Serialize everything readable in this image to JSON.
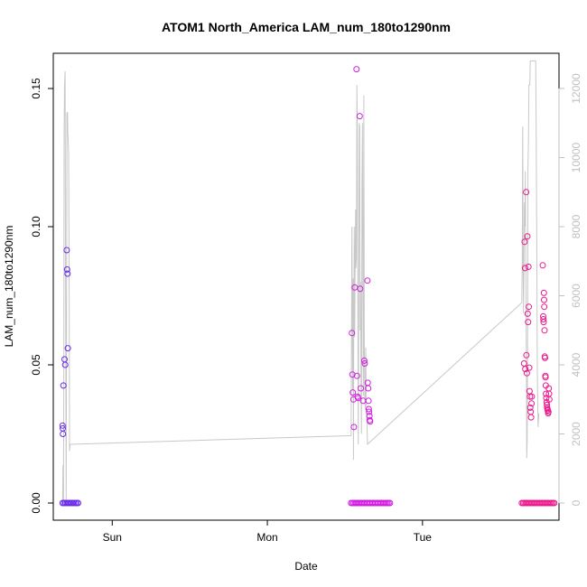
{
  "chart_data": {
    "type": "scatter",
    "title": "ATOM1 North_America LAM_num_180to1290nm",
    "xlabel": "Date",
    "ylabel": "LAM_num_180to1290nm",
    "x_ticks": [
      "Sun",
      "Mon",
      "Tue"
    ],
    "x_tick_days": [
      1,
      2,
      3
    ],
    "xlim": [
      0.62,
      3.88
    ],
    "ylim": [
      0,
      0.16
    ],
    "y_ticks": [
      0.0,
      0.05,
      0.1,
      0.15
    ],
    "y_tick_labels": [
      "0.00",
      "0.05",
      "0.10",
      "0.15"
    ],
    "y2lim": [
      0,
      12800
    ],
    "y2_ticks": [
      0,
      2000,
      4000,
      6000,
      8000,
      10000,
      12000
    ],
    "y2_tick_labels": [
      "0",
      "2000",
      "4000",
      "6000",
      "8000",
      "10000",
      "12000"
    ],
    "grid": false,
    "legend": "none",
    "colors": {
      "line": "#c8c8c8",
      "group1": "#6a2be8",
      "group2": "#d21ee0",
      "group3": "#ea1a8c",
      "frame": "#000000",
      "right_axis": "#c0c0c0"
    },
    "series": [
      {
        "color_key": "group1",
        "x_range": [
          0.68,
          0.78
        ],
        "points": [
          [
            0.68,
            0.028
          ],
          [
            0.681,
            0.027
          ],
          [
            0.682,
            0.025
          ],
          [
            0.685,
            0.0425
          ],
          [
            0.693,
            0.052
          ],
          [
            0.697,
            0.05
          ],
          [
            0.707,
            0.0915
          ],
          [
            0.709,
            0.0845
          ],
          [
            0.712,
            0.083
          ],
          [
            0.714,
            0.056
          ]
        ]
      },
      {
        "color_key": "group2",
        "x_range": [
          2.54,
          2.79
        ],
        "points": [
          [
            2.545,
            0.0615
          ],
          [
            2.548,
            0.0465
          ],
          [
            2.551,
            0.04
          ],
          [
            2.555,
            0.0375
          ],
          [
            2.558,
            0.0275
          ],
          [
            2.563,
            0.078
          ],
          [
            2.575,
            0.157
          ],
          [
            2.578,
            0.046
          ],
          [
            2.582,
            0.0385
          ],
          [
            2.585,
            0.038
          ],
          [
            2.595,
            0.14
          ],
          [
            2.598,
            0.0775
          ],
          [
            2.602,
            0.0415
          ],
          [
            2.617,
            0.037
          ],
          [
            2.625,
            0.0515
          ],
          [
            2.628,
            0.0505
          ],
          [
            2.645,
            0.0805
          ],
          [
            2.647,
            0.0435
          ],
          [
            2.65,
            0.0415
          ],
          [
            2.652,
            0.037
          ],
          [
            2.654,
            0.034
          ],
          [
            2.656,
            0.033
          ],
          [
            2.658,
            0.0315
          ],
          [
            2.66,
            0.03
          ],
          [
            2.662,
            0.0295
          ]
        ]
      },
      {
        "color_key": "group3",
        "x_range": [
          3.64,
          3.85
        ],
        "points": [
          [
            3.655,
            0.0505
          ],
          [
            3.658,
            0.0945
          ],
          [
            3.661,
            0.085
          ],
          [
            3.663,
            0.0485
          ],
          [
            3.668,
            0.1125
          ],
          [
            3.67,
            0.0535
          ],
          [
            3.673,
            0.047
          ],
          [
            3.676,
            0.0965
          ],
          [
            3.678,
            0.0685
          ],
          [
            3.681,
            0.0655
          ],
          [
            3.683,
            0.0855
          ],
          [
            3.685,
            0.071
          ],
          [
            3.688,
            0.049
          ],
          [
            3.69,
            0.0405
          ],
          [
            3.693,
            0.0385
          ],
          [
            3.695,
            0.0345
          ],
          [
            3.697,
            0.033
          ],
          [
            3.7,
            0.031
          ],
          [
            3.703,
            0.036
          ],
          [
            3.705,
            0.0385
          ],
          [
            3.775,
            0.086
          ],
          [
            3.778,
            0.0675
          ],
          [
            3.779,
            0.0665
          ],
          [
            3.781,
            0.0655
          ],
          [
            3.783,
            0.076
          ],
          [
            3.784,
            0.0735
          ],
          [
            3.785,
            0.071
          ],
          [
            3.787,
            0.0625
          ],
          [
            3.788,
            0.053
          ],
          [
            3.79,
            0.0525
          ],
          [
            3.792,
            0.046
          ],
          [
            3.793,
            0.0455
          ],
          [
            3.795,
            0.0425
          ],
          [
            3.796,
            0.0395
          ],
          [
            3.798,
            0.038
          ],
          [
            3.8,
            0.0365
          ],
          [
            3.802,
            0.0355
          ],
          [
            3.804,
            0.0345
          ],
          [
            3.806,
            0.034
          ],
          [
            3.808,
            0.0335
          ],
          [
            3.81,
            0.0325
          ],
          [
            3.812,
            0.033
          ],
          [
            3.814,
            0.0415
          ],
          [
            3.816,
            0.0395
          ],
          [
            3.818,
            0.0375
          ]
        ]
      }
    ],
    "line_y2": [
      [
        0.68,
        0
      ],
      [
        0.683,
        1100
      ],
      [
        0.686,
        0
      ],
      [
        0.688,
        4200
      ],
      [
        0.69,
        10800
      ],
      [
        0.693,
        12100
      ],
      [
        0.696,
        12500
      ],
      [
        0.699,
        6500
      ],
      [
        0.703,
        0
      ],
      [
        0.706,
        7000
      ],
      [
        0.708,
        11300
      ],
      [
        0.712,
        11300
      ],
      [
        0.714,
        10700
      ],
      [
        0.716,
        10500
      ],
      [
        0.719,
        10100
      ],
      [
        0.721,
        8200
      ],
      [
        0.723,
        5400
      ],
      [
        0.725,
        1500
      ],
      [
        0.728,
        1700
      ],
      [
        2.54,
        1950
      ],
      [
        2.545,
        8000
      ],
      [
        2.548,
        4800
      ],
      [
        2.55,
        3300
      ],
      [
        2.553,
        6500
      ],
      [
        2.555,
        1250
      ],
      [
        2.557,
        4800
      ],
      [
        2.56,
        8000
      ],
      [
        2.563,
        4800
      ],
      [
        2.566,
        7100
      ],
      [
        2.569,
        8500
      ],
      [
        2.571,
        6800
      ],
      [
        2.574,
        7100
      ],
      [
        2.577,
        12100
      ],
      [
        2.58,
        10500
      ],
      [
        2.583,
        6000
      ],
      [
        2.586,
        1700
      ],
      [
        2.589,
        5000
      ],
      [
        2.592,
        11000
      ],
      [
        2.595,
        10900
      ],
      [
        2.598,
        5000
      ],
      [
        2.601,
        6400
      ],
      [
        2.604,
        3300
      ],
      [
        2.607,
        2000
      ],
      [
        2.61,
        9200
      ],
      [
        2.613,
        11000
      ],
      [
        2.616,
        5800
      ],
      [
        2.619,
        3100
      ],
      [
        2.622,
        11800
      ],
      [
        2.625,
        4600
      ],
      [
        2.628,
        3100
      ],
      [
        2.631,
        2700
      ],
      [
        2.634,
        4500
      ],
      [
        2.637,
        2900
      ],
      [
        2.64,
        2800
      ],
      [
        2.645,
        1700
      ],
      [
        3.64,
        5800
      ],
      [
        3.643,
        7000
      ],
      [
        3.646,
        10900
      ],
      [
        3.649,
        6900
      ],
      [
        3.651,
        5500
      ],
      [
        3.654,
        6700
      ],
      [
        3.657,
        8700
      ],
      [
        3.66,
        8000
      ],
      [
        3.663,
        9600
      ],
      [
        3.666,
        7300
      ],
      [
        3.669,
        4500
      ],
      [
        3.672,
        1300
      ],
      [
        3.675,
        1900
      ],
      [
        3.678,
        5200
      ],
      [
        3.68,
        9700
      ],
      [
        3.683,
        10500
      ],
      [
        3.686,
        12100
      ],
      [
        3.689,
        12100
      ],
      [
        3.692,
        12100
      ],
      [
        3.695,
        12800
      ],
      [
        3.73,
        12800
      ],
      [
        3.733,
        10900
      ],
      [
        3.736,
        8000
      ],
      [
        3.74,
        3800
      ],
      [
        3.745,
        2200
      ],
      [
        3.75,
        2600
      ]
    ]
  }
}
